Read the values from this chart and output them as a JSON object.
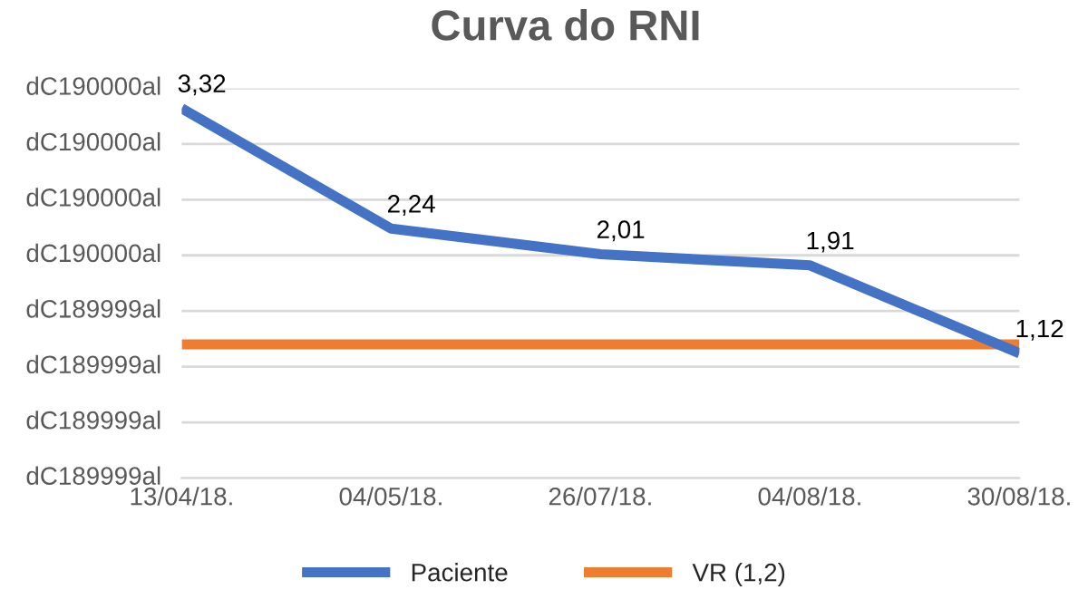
{
  "chart_data": {
    "type": "line",
    "title": "Curva do RNI",
    "categories": [
      "13/04/18.",
      "04/05/18.",
      "26/07/18.",
      "04/08/18.",
      "30/08/18."
    ],
    "series": [
      {
        "name": "Paciente",
        "color": "#4472c4",
        "values": [
          3.32,
          2.24,
          2.01,
          1.91,
          1.12
        ],
        "value_labels": [
          "3,32",
          "2,24",
          "2,01",
          "1,91",
          "1,12"
        ]
      },
      {
        "name": "VR (1,2)",
        "color": "#ed7d31",
        "values": [
          1.2,
          1.2,
          1.2,
          1.2,
          1.2
        ]
      }
    ],
    "ylim": [
      0,
      3.5
    ],
    "yticks": [
      {
        "value": 0,
        "label": null
      },
      {
        "value": 0.5,
        "label": null
      },
      {
        "value": 1.0,
        "label": null
      },
      {
        "value": 1.5,
        "label": null
      },
      {
        "value": 2.0,
        "label": null
      },
      {
        "value": 2.5,
        "label": null
      },
      {
        "value": 3.0,
        "label": null
      },
      {
        "value": 3.5,
        "label": null
      }
    ],
    "annotations": [
      "dC189999al",
      "dC189999al",
      "dC189999al",
      "dC189999al",
      "dC190000al",
      "dC190000al",
      "dC190000al",
      "dC190000al"
    ],
    "grid": "y",
    "legend": "bottom",
    "marker": "none",
    "line_style": "solid"
  }
}
